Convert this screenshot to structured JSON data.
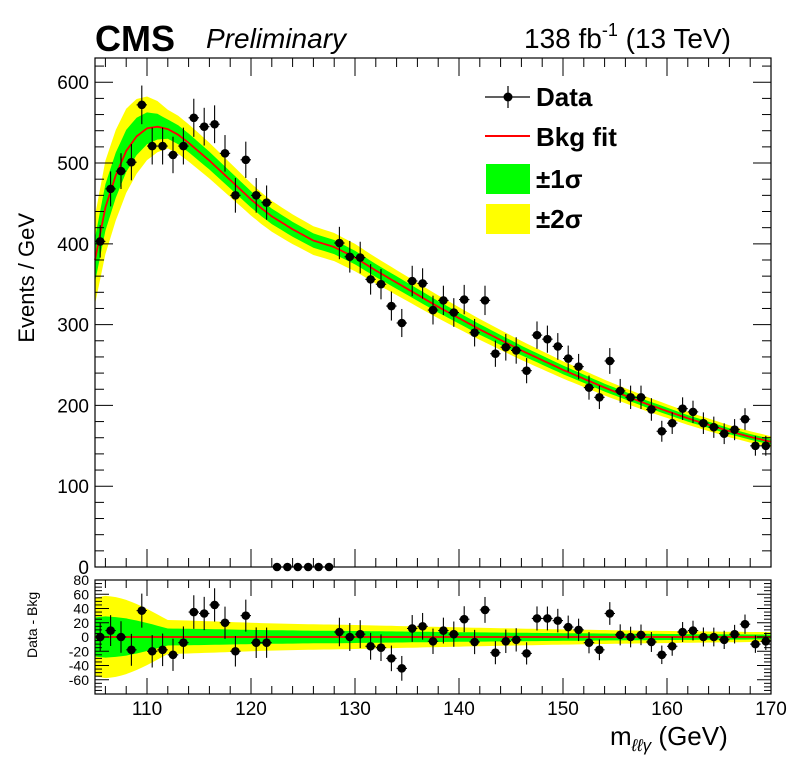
{
  "header": {
    "experiment": "CMS",
    "status": "Preliminary",
    "luminosity": "138 fb",
    "luminosity_exp": "-1",
    "energy": "(13 TeV)"
  },
  "chart_data": [
    {
      "type": "scatter",
      "panel": "main",
      "xlabel": "m",
      "xlabel_sub": "ℓℓγ",
      "xlabel_unit": "(GeV)",
      "ylabel": "Events / GeV",
      "xlim": [
        105,
        170
      ],
      "ylim": [
        0,
        630
      ],
      "xticks": [
        110,
        120,
        130,
        140,
        150,
        160,
        170
      ],
      "yticks": [
        0,
        100,
        200,
        300,
        400,
        500,
        600
      ],
      "legend_position": "top-right",
      "legend": [
        {
          "label": "Data",
          "kind": "marker",
          "color": "#000000"
        },
        {
          "label": "Bkg fit",
          "kind": "line",
          "color": "#ff0000"
        },
        {
          "label": "±1σ",
          "kind": "band",
          "color": "#00ff00"
        },
        {
          "label": "±2σ",
          "kind": "band",
          "color": "#ffff00"
        }
      ],
      "series": [
        {
          "name": "Data",
          "points": [
            [
              105.5,
              403
            ],
            [
              106.5,
              468
            ],
            [
              107.5,
              490
            ],
            [
              108.5,
              501
            ],
            [
              109.5,
              572
            ],
            [
              110.5,
              521
            ],
            [
              111.5,
              521
            ],
            [
              112.5,
              510
            ],
            [
              113.5,
              521
            ],
            [
              114.5,
              556
            ],
            [
              115.5,
              545
            ],
            [
              116.5,
              548
            ],
            [
              117.5,
              512
            ],
            [
              118.5,
              460
            ],
            [
              119.5,
              504
            ],
            [
              120.5,
              460
            ],
            [
              121.5,
              451
            ],
            [
              122.5,
              0
            ],
            [
              123.5,
              0
            ],
            [
              124.5,
              0
            ],
            [
              125.5,
              0
            ],
            [
              126.5,
              0
            ],
            [
              127.5,
              0
            ],
            [
              128.5,
              401
            ],
            [
              129.5,
              384
            ],
            [
              130.5,
              383
            ],
            [
              131.5,
              356
            ],
            [
              132.5,
              350
            ],
            [
              133.5,
              323
            ],
            [
              134.5,
              302
            ],
            [
              135.5,
              354
            ],
            [
              136.5,
              351
            ],
            [
              137.5,
              318
            ],
            [
              138.5,
              330
            ],
            [
              139.5,
              315
            ],
            [
              140.5,
              331
            ],
            [
              141.5,
              290
            ],
            [
              142.5,
              330
            ],
            [
              143.5,
              264
            ],
            [
              144.5,
              272
            ],
            [
              145.5,
              268
            ],
            [
              146.5,
              243
            ],
            [
              147.5,
              287
            ],
            [
              148.5,
              282
            ],
            [
              149.5,
              273
            ],
            [
              150.5,
              258
            ],
            [
              151.5,
              248
            ],
            [
              152.5,
              222
            ],
            [
              153.5,
              210
            ],
            [
              154.5,
              255
            ],
            [
              155.5,
              218
            ],
            [
              156.5,
              210
            ],
            [
              157.5,
              210
            ],
            [
              158.5,
              195
            ],
            [
              159.5,
              168
            ],
            [
              160.5,
              178
            ],
            [
              161.5,
              196
            ],
            [
              162.5,
              192
            ],
            [
              163.5,
              178
            ],
            [
              164.5,
              173
            ],
            [
              165.5,
              165
            ],
            [
              166.5,
              170
            ],
            [
              167.5,
              183
            ],
            [
              168.5,
              150
            ],
            [
              169.5,
              150
            ]
          ]
        },
        {
          "name": "Bkg fit",
          "points": [
            [
              105,
              380
            ],
            [
              106,
              445
            ],
            [
              107,
              485
            ],
            [
              108,
              515
            ],
            [
              109,
              533
            ],
            [
              110,
              543
            ],
            [
              111,
              545
            ],
            [
              112,
              542
            ],
            [
              113,
              535
            ],
            [
              114,
              525
            ],
            [
              115,
              514
            ],
            [
              116,
              503
            ],
            [
              117,
              491
            ],
            [
              118,
              479
            ],
            [
              119,
              467
            ],
            [
              120,
              455
            ],
            [
              121,
              444
            ],
            [
              122,
              434
            ],
            [
              124,
              418
            ],
            [
              126,
              404
            ],
            [
              128,
              396
            ],
            [
              130,
              383
            ],
            [
              132,
              367
            ],
            [
              134,
              352
            ],
            [
              136,
              337
            ],
            [
              138,
              322
            ],
            [
              140,
              308
            ],
            [
              142,
              294
            ],
            [
              144,
              281
            ],
            [
              146,
              268
            ],
            [
              148,
              256
            ],
            [
              150,
              244
            ],
            [
              152,
              233
            ],
            [
              154,
              222
            ],
            [
              156,
              212
            ],
            [
              158,
              202
            ],
            [
              160,
              193
            ],
            [
              162,
              184
            ],
            [
              164,
              176
            ],
            [
              166,
              168
            ],
            [
              168,
              161
            ],
            [
              170,
              155
            ]
          ]
        }
      ]
    },
    {
      "type": "scatter",
      "panel": "ratio",
      "ylabel": "Data - Bkg",
      "xlabel": "m",
      "xlim": [
        105,
        170
      ],
      "ylim": [
        -80,
        80
      ],
      "xticks": [
        110,
        120,
        130,
        140,
        150,
        160,
        170
      ],
      "yticks": [
        -60,
        -40,
        -20,
        0,
        20,
        40,
        60,
        80
      ],
      "series": [
        {
          "name": "Data - Bkg",
          "points": [
            [
              105.5,
              0
            ],
            [
              106.5,
              9
            ],
            [
              107.5,
              0
            ],
            [
              108.5,
              -18
            ],
            [
              109.5,
              37
            ],
            [
              110.5,
              -20
            ],
            [
              111.5,
              -18
            ],
            [
              112.5,
              -25
            ],
            [
              113.5,
              -8
            ],
            [
              114.5,
              35
            ],
            [
              115.5,
              33
            ],
            [
              116.5,
              45
            ],
            [
              117.5,
              20
            ],
            [
              118.5,
              -20
            ],
            [
              119.5,
              30
            ],
            [
              120.5,
              -8
            ],
            [
              121.5,
              -8
            ],
            [
              128.5,
              7
            ],
            [
              129.5,
              0
            ],
            [
              130.5,
              4
            ],
            [
              131.5,
              -13
            ],
            [
              132.5,
              -15
            ],
            [
              133.5,
              -30
            ],
            [
              134.5,
              -44
            ],
            [
              135.5,
              12
            ],
            [
              136.5,
              15
            ],
            [
              137.5,
              -6
            ],
            [
              138.5,
              9
            ],
            [
              139.5,
              4
            ],
            [
              140.5,
              25
            ],
            [
              141.5,
              -7
            ],
            [
              142.5,
              38
            ],
            [
              143.5,
              -22
            ],
            [
              144.5,
              -6
            ],
            [
              145.5,
              -4
            ],
            [
              146.5,
              -23
            ],
            [
              147.5,
              26
            ],
            [
              148.5,
              26
            ],
            [
              149.5,
              23
            ],
            [
              150.5,
              14
            ],
            [
              151.5,
              10
            ],
            [
              152.5,
              -8
            ],
            [
              153.5,
              -18
            ],
            [
              154.5,
              33
            ],
            [
              155.5,
              3
            ],
            [
              156.5,
              0
            ],
            [
              157.5,
              3
            ],
            [
              158.5,
              -7
            ],
            [
              159.5,
              -25
            ],
            [
              160.5,
              -13
            ],
            [
              161.5,
              7
            ],
            [
              162.5,
              9
            ],
            [
              163.5,
              0
            ],
            [
              164.5,
              0
            ],
            [
              165.5,
              -4
            ],
            [
              166.5,
              4
            ],
            [
              167.5,
              18
            ],
            [
              168.5,
              -10
            ],
            [
              169.5,
              -6
            ]
          ]
        }
      ]
    }
  ]
}
